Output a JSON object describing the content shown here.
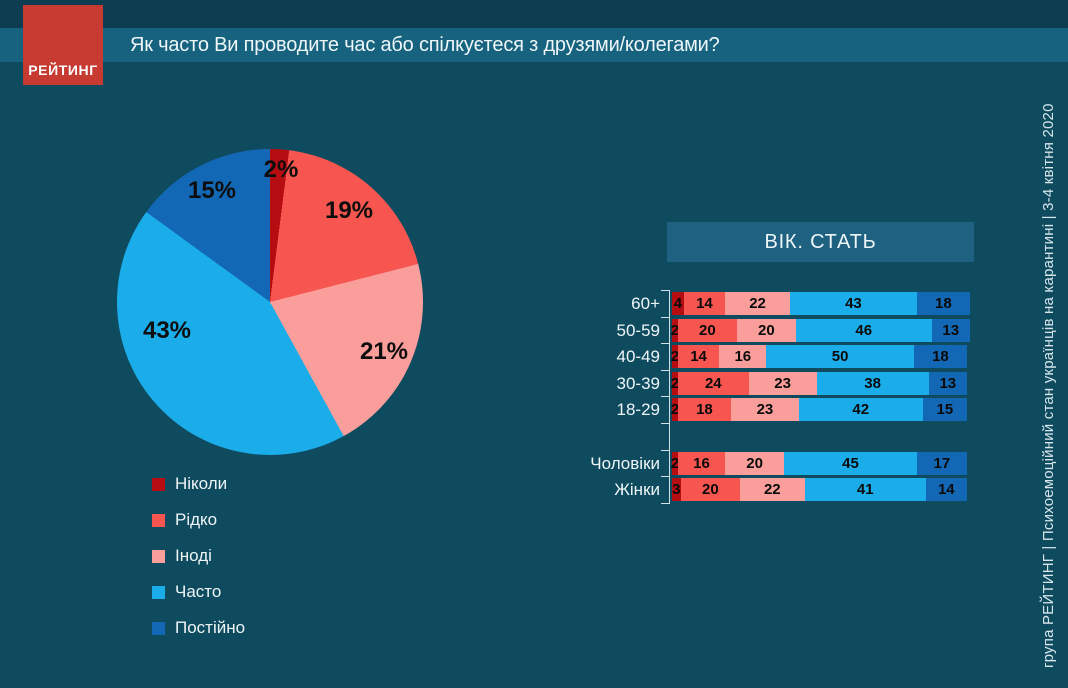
{
  "header": {
    "logo_text": "РЕЙТИНГ",
    "title": "Як часто Ви проводите час або спілкуєтеся з друзями/колегами?"
  },
  "panel": {
    "title": "ВІК. СТАТЬ"
  },
  "footer_vertical_text": "група РЕЙТИНГ  |  Психоемоційний стан українців на карантині  |  3-4 квітня 2020",
  "colors": {
    "background": "#0f4b5f",
    "top_band": "#0e3d51",
    "title_band": "#17637f",
    "panel_header_bg": "#1e6181",
    "logo_red": "#c63a31",
    "never": "#b50d11",
    "rarely": "#f6564f",
    "sometimes": "#f99e9a",
    "often": "#1badea",
    "constantly": "#1368b6"
  },
  "legend": {
    "items": [
      {
        "label": "Ніколи",
        "color": "#b50d11"
      },
      {
        "label": "Рідко",
        "color": "#f6564f"
      },
      {
        "label": "Іноді",
        "color": "#f99e9a"
      },
      {
        "label": "Часто",
        "color": "#1badea"
      },
      {
        "label": "Постійно",
        "color": "#1368b6"
      }
    ]
  },
  "chart_data": [
    {
      "type": "pie",
      "title": "Як часто Ви проводите час або спілкуєтеся з друзями/колегами?",
      "labels": [
        "Ніколи",
        "Рідко",
        "Іноді",
        "Часто",
        "Постійно"
      ],
      "values": [
        2,
        19,
        21,
        43,
        15
      ],
      "value_labels": [
        "2%",
        "19%",
        "21%",
        "43%",
        "15%"
      ],
      "colors": [
        "#b50d11",
        "#f6564f",
        "#f99e9a",
        "#1badea",
        "#1368b6"
      ],
      "start_angle_deg": 0,
      "direction": "clockwise",
      "legend_position": "bottom-left"
    },
    {
      "type": "bar",
      "subtype": "stacked-horizontal",
      "panel_title": "ВІК. СТАТЬ",
      "categories": [
        "60+",
        "50-59",
        "40-49",
        "30-39",
        "18-29",
        "Чоловіки",
        "Жінки"
      ],
      "series": [
        {
          "name": "Ніколи",
          "color": "#b50d11",
          "values": [
            4,
            2,
            2,
            2,
            2,
            2,
            3
          ]
        },
        {
          "name": "Рідко",
          "color": "#f6564f",
          "values": [
            14,
            20,
            14,
            24,
            18,
            16,
            20
          ]
        },
        {
          "name": "Іноді",
          "color": "#f99e9a",
          "values": [
            22,
            20,
            16,
            23,
            23,
            20,
            22
          ]
        },
        {
          "name": "Часто",
          "color": "#1badea",
          "values": [
            43,
            46,
            50,
            38,
            42,
            45,
            41
          ]
        },
        {
          "name": "Постійно",
          "color": "#1368b6",
          "values": [
            18,
            13,
            18,
            13,
            15,
            17,
            14
          ]
        }
      ],
      "group_break_after": "18-29",
      "xlim": [
        0,
        101
      ],
      "value_labels_shown": true
    }
  ]
}
